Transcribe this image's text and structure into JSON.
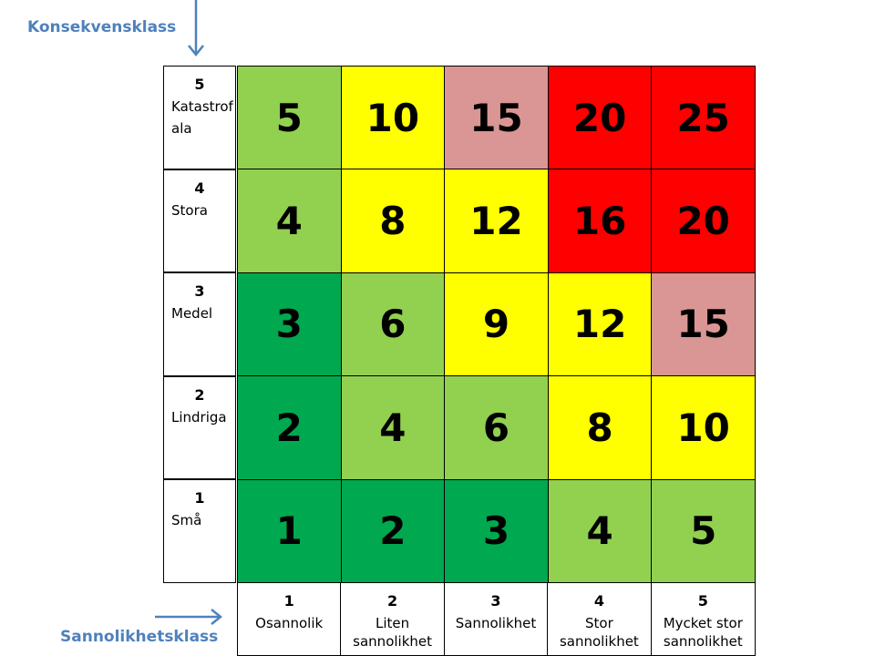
{
  "axes": {
    "y_title": "Konsekvensklass",
    "x_title": "Sannolikhetsklass"
  },
  "colors": {
    "dark_green": "#00a850",
    "light_green": "#92d050",
    "yellow": "#ffff00",
    "pink": "#d99694",
    "red": "#ff0000",
    "arrow": "#4f81bd"
  },
  "consequence_labels": [
    {
      "num": "5",
      "name": "Katastrofala"
    },
    {
      "num": "4",
      "name": "Stora"
    },
    {
      "num": "3",
      "name": "Medel"
    },
    {
      "num": "2",
      "name": "Lindriga"
    },
    {
      "num": "1",
      "name": "Små"
    }
  ],
  "probability_labels": [
    {
      "num": "1",
      "name": "Osannolik"
    },
    {
      "num": "2",
      "name": "Liten sannolikhet"
    },
    {
      "num": "3",
      "name": "Sannolikhet"
    },
    {
      "num": "4",
      "name": "Stor sannolikhet"
    },
    {
      "num": "5",
      "name": "Mycket stor sannolikhet"
    }
  ],
  "matrix": [
    [
      {
        "v": "5",
        "c": "light_green"
      },
      {
        "v": "10",
        "c": "yellow"
      },
      {
        "v": "15",
        "c": "pink"
      },
      {
        "v": "20",
        "c": "red"
      },
      {
        "v": "25",
        "c": "red"
      }
    ],
    [
      {
        "v": "4",
        "c": "light_green"
      },
      {
        "v": "8",
        "c": "yellow"
      },
      {
        "v": "12",
        "c": "yellow"
      },
      {
        "v": "16",
        "c": "red"
      },
      {
        "v": "20",
        "c": "red"
      }
    ],
    [
      {
        "v": "3",
        "c": "dark_green"
      },
      {
        "v": "6",
        "c": "light_green"
      },
      {
        "v": "9",
        "c": "yellow"
      },
      {
        "v": "12",
        "c": "yellow"
      },
      {
        "v": "15",
        "c": "pink"
      }
    ],
    [
      {
        "v": "2",
        "c": "dark_green"
      },
      {
        "v": "4",
        "c": "light_green"
      },
      {
        "v": "6",
        "c": "light_green"
      },
      {
        "v": "8",
        "c": "yellow"
      },
      {
        "v": "10",
        "c": "yellow"
      }
    ],
    [
      {
        "v": "1",
        "c": "dark_green"
      },
      {
        "v": "2",
        "c": "dark_green"
      },
      {
        "v": "3",
        "c": "dark_green"
      },
      {
        "v": "4",
        "c": "light_green"
      },
      {
        "v": "5",
        "c": "light_green"
      }
    ]
  ]
}
